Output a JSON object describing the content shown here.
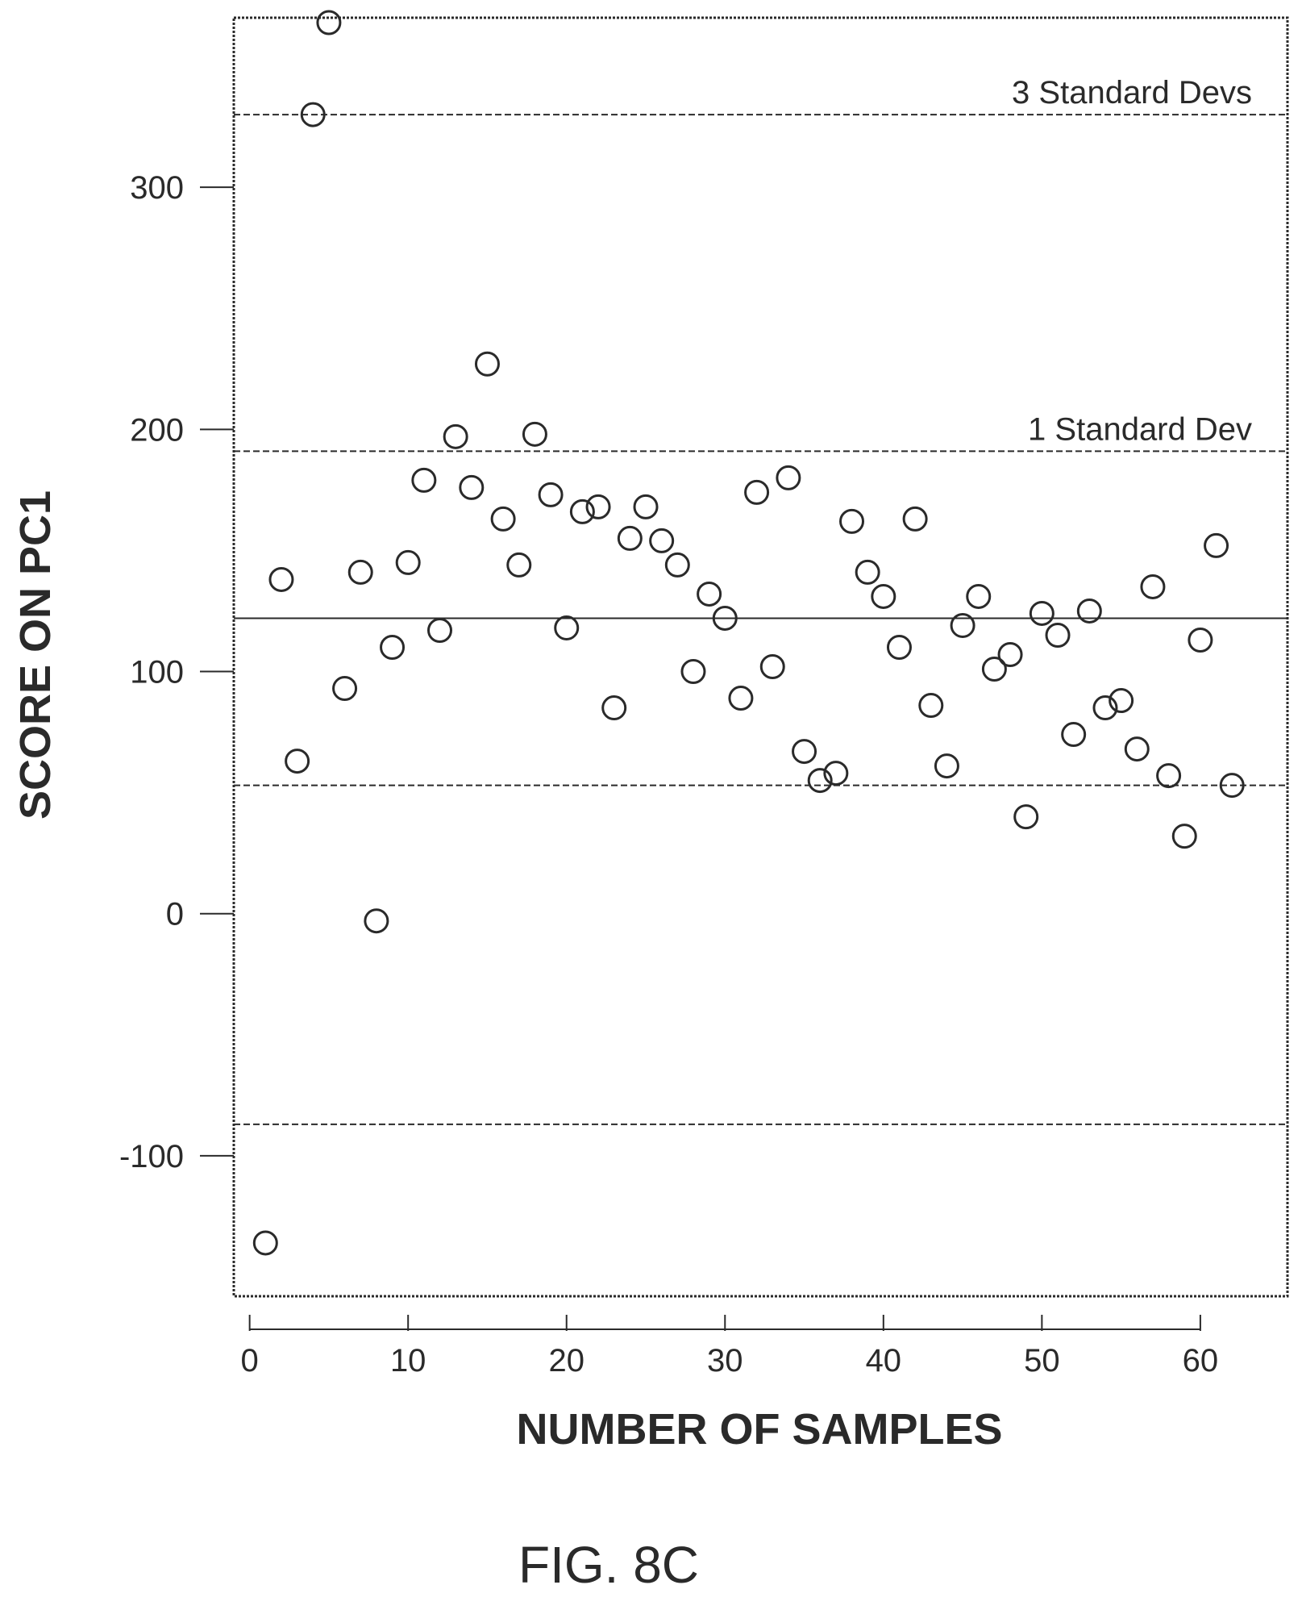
{
  "chart_data": {
    "type": "scatter",
    "xlabel": "NUMBER OF SAMPLES",
    "ylabel": "SCORE ON PC1",
    "xlim": [
      -1,
      65.5
    ],
    "ylim": [
      -158,
      370
    ],
    "xticks": [
      0,
      10,
      20,
      30,
      40,
      50,
      60
    ],
    "yticks": [
      -100,
      0,
      100,
      200,
      300
    ],
    "grid": false,
    "reference_lines": [
      {
        "value": 330,
        "style": "dashed",
        "label": "3 Standard Devs"
      },
      {
        "value": 191,
        "style": "dashed",
        "label": "1 Standard Dev"
      },
      {
        "value": 122,
        "style": "solid",
        "label": ""
      },
      {
        "value": 53,
        "style": "dashed",
        "label": ""
      },
      {
        "value": -87,
        "style": "dashed",
        "label": ""
      }
    ],
    "points": [
      {
        "x": 1,
        "y": -136
      },
      {
        "x": 2,
        "y": 138
      },
      {
        "x": 3,
        "y": 63
      },
      {
        "x": 4,
        "y": 330
      },
      {
        "x": 5,
        "y": 368
      },
      {
        "x": 6,
        "y": 93
      },
      {
        "x": 7,
        "y": 141
      },
      {
        "x": 8,
        "y": -3
      },
      {
        "x": 9,
        "y": 110
      },
      {
        "x": 10,
        "y": 145
      },
      {
        "x": 11,
        "y": 179
      },
      {
        "x": 12,
        "y": 117
      },
      {
        "x": 13,
        "y": 197
      },
      {
        "x": 14,
        "y": 176
      },
      {
        "x": 15,
        "y": 227
      },
      {
        "x": 16,
        "y": 163
      },
      {
        "x": 17,
        "y": 144
      },
      {
        "x": 18,
        "y": 198
      },
      {
        "x": 19,
        "y": 173
      },
      {
        "x": 20,
        "y": 118
      },
      {
        "x": 21,
        "y": 166
      },
      {
        "x": 22,
        "y": 168
      },
      {
        "x": 23,
        "y": 85
      },
      {
        "x": 24,
        "y": 155
      },
      {
        "x": 25,
        "y": 168
      },
      {
        "x": 26,
        "y": 154
      },
      {
        "x": 27,
        "y": 144
      },
      {
        "x": 28,
        "y": 100
      },
      {
        "x": 29,
        "y": 132
      },
      {
        "x": 30,
        "y": 122
      },
      {
        "x": 31,
        "y": 89
      },
      {
        "x": 32,
        "y": 174
      },
      {
        "x": 33,
        "y": 102
      },
      {
        "x": 34,
        "y": 180
      },
      {
        "x": 35,
        "y": 67
      },
      {
        "x": 36,
        "y": 55
      },
      {
        "x": 37,
        "y": 58
      },
      {
        "x": 38,
        "y": 162
      },
      {
        "x": 39,
        "y": 141
      },
      {
        "x": 40,
        "y": 131
      },
      {
        "x": 41,
        "y": 110
      },
      {
        "x": 42,
        "y": 163
      },
      {
        "x": 43,
        "y": 86
      },
      {
        "x": 44,
        "y": 61
      },
      {
        "x": 45,
        "y": 119
      },
      {
        "x": 46,
        "y": 131
      },
      {
        "x": 47,
        "y": 101
      },
      {
        "x": 48,
        "y": 107
      },
      {
        "x": 49,
        "y": 40
      },
      {
        "x": 50,
        "y": 124
      },
      {
        "x": 51,
        "y": 115
      },
      {
        "x": 52,
        "y": 74
      },
      {
        "x": 53,
        "y": 125
      },
      {
        "x": 54,
        "y": 85
      },
      {
        "x": 55,
        "y": 88
      },
      {
        "x": 56,
        "y": 68
      },
      {
        "x": 57,
        "y": 135
      },
      {
        "x": 58,
        "y": 57
      },
      {
        "x": 59,
        "y": 32
      },
      {
        "x": 60,
        "y": 113
      },
      {
        "x": 61,
        "y": 152
      },
      {
        "x": 62,
        "y": 53
      }
    ]
  },
  "caption": "FIG. 8C"
}
